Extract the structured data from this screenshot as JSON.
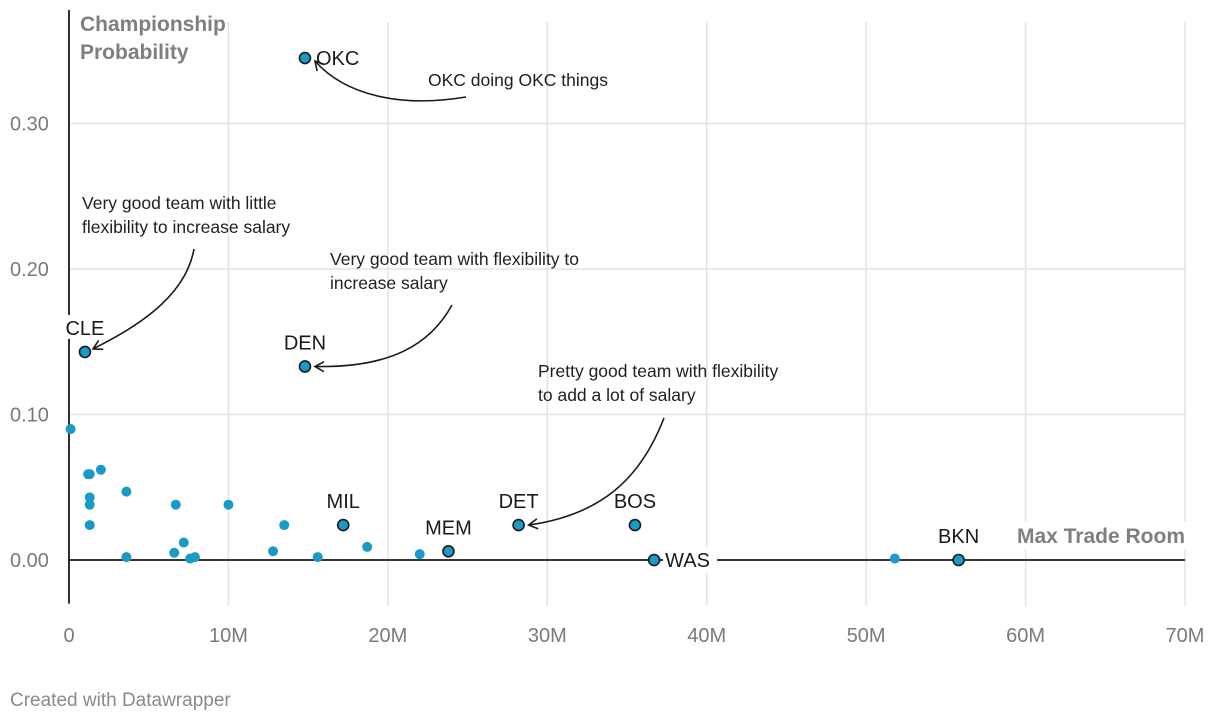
{
  "chart_data": {
    "type": "scatter",
    "title": "",
    "xlabel": "Max Trade Room",
    "ylabel": "Championship Probability",
    "xlim": [
      0,
      70000000
    ],
    "ylim": [
      -0.03,
      0.37
    ],
    "x_ticks": [
      0,
      10000000,
      20000000,
      30000000,
      40000000,
      50000000,
      60000000,
      70000000
    ],
    "x_tick_labels": [
      "0",
      "10M",
      "20M",
      "30M",
      "40M",
      "50M",
      "60M",
      "70M"
    ],
    "y_ticks": [
      0,
      0.1,
      0.2,
      0.3
    ],
    "y_tick_labels": [
      "0.00",
      "0.10",
      "0.20",
      "0.30"
    ],
    "grid": true,
    "highlighted": [
      {
        "team": "OKC",
        "x": 14800000,
        "y": 0.345,
        "label_pos": "right"
      },
      {
        "team": "CLE",
        "x": 1000000,
        "y": 0.143,
        "label_pos": "top"
      },
      {
        "team": "DEN",
        "x": 14800000,
        "y": 0.133,
        "label_pos": "top"
      },
      {
        "team": "MIL",
        "x": 17200000,
        "y": 0.024,
        "label_pos": "top"
      },
      {
        "team": "MEM",
        "x": 23800000,
        "y": 0.006,
        "label_pos": "top"
      },
      {
        "team": "DET",
        "x": 28200000,
        "y": 0.024,
        "label_pos": "top"
      },
      {
        "team": "BOS",
        "x": 35500000,
        "y": 0.024,
        "label_pos": "top"
      },
      {
        "team": "WAS",
        "x": 36700000,
        "y": 0.0,
        "label_pos": "right"
      },
      {
        "team": "BKN",
        "x": 55800000,
        "y": 0.0,
        "label_pos": "top"
      }
    ],
    "others": [
      {
        "x": 100000,
        "y": 0.09
      },
      {
        "x": 1200000,
        "y": 0.059
      },
      {
        "x": 1300000,
        "y": 0.059
      },
      {
        "x": 2000000,
        "y": 0.062
      },
      {
        "x": 1300000,
        "y": 0.043
      },
      {
        "x": 1300000,
        "y": 0.038
      },
      {
        "x": 1300000,
        "y": 0.024
      },
      {
        "x": 3600000,
        "y": 0.047
      },
      {
        "x": 3600000,
        "y": 0.002
      },
      {
        "x": 6700000,
        "y": 0.038
      },
      {
        "x": 6600000,
        "y": 0.005
      },
      {
        "x": 7200000,
        "y": 0.012
      },
      {
        "x": 7600000,
        "y": 0.001
      },
      {
        "x": 7900000,
        "y": 0.002
      },
      {
        "x": 10000000,
        "y": 0.038
      },
      {
        "x": 12800000,
        "y": 0.006
      },
      {
        "x": 13500000,
        "y": 0.024
      },
      {
        "x": 15600000,
        "y": 0.002
      },
      {
        "x": 18700000,
        "y": 0.009
      },
      {
        "x": 22000000,
        "y": 0.004
      },
      {
        "x": 51800000,
        "y": 0.001
      }
    ],
    "annotations": [
      {
        "lines": [
          "OKC doing OKC things"
        ],
        "points_to": "OKC"
      },
      {
        "lines": [
          "Very good team with little",
          "flexibility to increase salary"
        ],
        "points_to": "CLE"
      },
      {
        "lines": [
          "Very good team with flexibility to",
          "increase salary"
        ],
        "points_to": "DEN"
      },
      {
        "lines": [
          "Pretty good team with flexibility",
          "to add a lot of salary"
        ],
        "points_to": "DET"
      }
    ],
    "colors": {
      "point": "#1a9bc7",
      "highlight_stroke": "#1a1a1a",
      "grid": "#e3e3e3",
      "axis": "#1a1a1a"
    }
  },
  "footer": {
    "credit": "Created with Datawrapper"
  }
}
